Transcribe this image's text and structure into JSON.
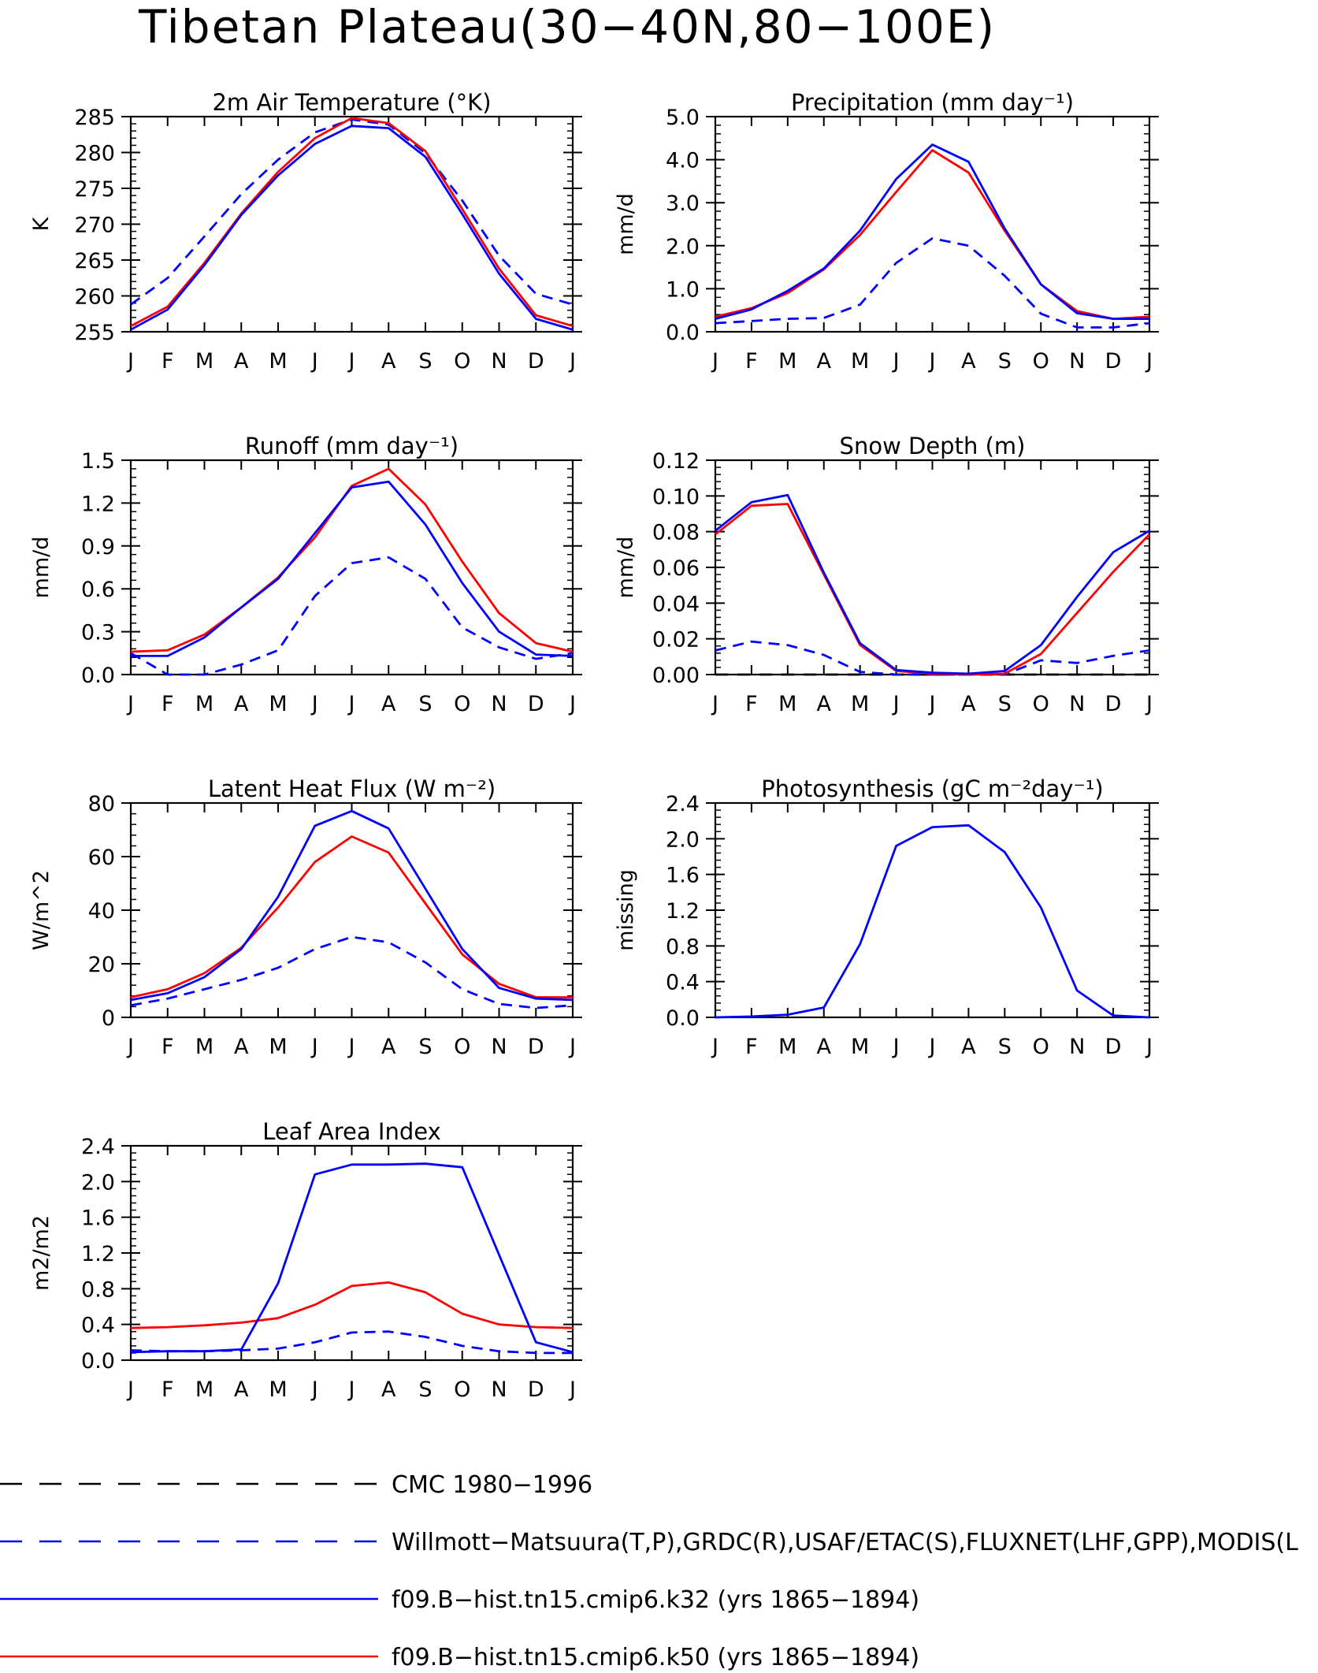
{
  "title": "Tibetan Plateau(30−40N,80−100E)",
  "colors": {
    "obs": "#0000ff",
    "k32": "#0000ff",
    "k50": "#ff0000",
    "cmc": "#000000"
  },
  "months": [
    "J",
    "F",
    "M",
    "A",
    "M",
    "J",
    "J",
    "A",
    "S",
    "O",
    "N",
    "D",
    "J"
  ],
  "legend": [
    {
      "label": "CMC 1980−1996",
      "color": "#000000",
      "style": "longdash"
    },
    {
      "label": "Willmott−Matsuura(T,P),GRDC(R),USAF/ETAC(S),FLUXNET(LHF,GPP),MODIS(L",
      "color": "#0000ff",
      "style": "longdash"
    },
    {
      "label": "f09.B−hist.tn15.cmip6.k32 (yrs 1865−1894)",
      "color": "#0000ff",
      "style": "solid"
    },
    {
      "label": "f09.B−hist.tn15.cmip6.k50 (yrs 1865−1894)",
      "color": "#ff0000",
      "style": "solid"
    }
  ],
  "chart_data": [
    {
      "id": "temp",
      "type": "line",
      "title": "2m Air Temperature (°K)",
      "ylabel": "K",
      "ylim": [
        255,
        285
      ],
      "yticks": [
        255,
        260,
        265,
        270,
        275,
        280,
        285
      ],
      "ydec": 0,
      "series": [
        {
          "role": "obs",
          "color": "#0000ff",
          "dash": true,
          "values": [
            258.8,
            262.5,
            268.3,
            274.2,
            279.0,
            282.8,
            284.6,
            283.9,
            279.9,
            273.3,
            265.6,
            260.3,
            258.8
          ]
        },
        {
          "role": "k50",
          "color": "#ff0000",
          "dash": false,
          "values": [
            255.8,
            258.5,
            264.6,
            271.5,
            277.3,
            282.0,
            284.8,
            284.1,
            280.2,
            272.1,
            263.8,
            257.3,
            255.8
          ]
        },
        {
          "role": "k32",
          "color": "#0000ff",
          "dash": false,
          "values": [
            255.3,
            258.1,
            264.3,
            271.3,
            276.8,
            281.2,
            283.7,
            283.4,
            279.4,
            271.4,
            263.1,
            256.8,
            255.3
          ]
        }
      ]
    },
    {
      "id": "precip",
      "type": "line",
      "title": "Precipitation (mm day⁻¹)",
      "ylabel": "mm/d",
      "ylim": [
        0,
        5
      ],
      "yticks": [
        0,
        1,
        2,
        3,
        4,
        5
      ],
      "ydec": 1,
      "series": [
        {
          "role": "obs",
          "color": "#0000ff",
          "dash": true,
          "values": [
            0.2,
            0.25,
            0.3,
            0.32,
            0.63,
            1.6,
            2.17,
            2.0,
            1.3,
            0.42,
            0.1,
            0.1,
            0.2
          ]
        },
        {
          "role": "k50",
          "color": "#ff0000",
          "dash": false,
          "values": [
            0.35,
            0.55,
            0.9,
            1.45,
            2.25,
            3.25,
            4.22,
            3.7,
            2.35,
            1.1,
            0.48,
            0.3,
            0.35
          ]
        },
        {
          "role": "k32",
          "color": "#0000ff",
          "dash": false,
          "values": [
            0.3,
            0.52,
            0.95,
            1.47,
            2.35,
            3.55,
            4.35,
            3.95,
            2.4,
            1.1,
            0.43,
            0.3,
            0.3
          ]
        }
      ]
    },
    {
      "id": "runoff",
      "type": "line",
      "title": "Runoff (mm day⁻¹)",
      "ylabel": "mm/d",
      "ylim": [
        0,
        1.5
      ],
      "yticks": [
        0,
        0.3,
        0.6,
        0.9,
        1.2,
        1.5
      ],
      "ydec": 1,
      "series": [
        {
          "role": "obs",
          "color": "#0000ff",
          "dash": true,
          "values": [
            0.15,
            0.0,
            0.0,
            0.07,
            0.17,
            0.55,
            0.78,
            0.82,
            0.67,
            0.33,
            0.19,
            0.11,
            0.15
          ]
        },
        {
          "role": "k50",
          "color": "#ff0000",
          "dash": false,
          "values": [
            0.16,
            0.17,
            0.28,
            0.47,
            0.68,
            0.96,
            1.32,
            1.44,
            1.19,
            0.79,
            0.43,
            0.22,
            0.16
          ]
        },
        {
          "role": "k32",
          "color": "#0000ff",
          "dash": false,
          "values": [
            0.13,
            0.13,
            0.26,
            0.47,
            0.67,
            0.99,
            1.31,
            1.35,
            1.05,
            0.64,
            0.3,
            0.14,
            0.13
          ]
        }
      ]
    },
    {
      "id": "snow",
      "type": "line",
      "title": "Snow Depth (m)",
      "ylabel": "mm/d",
      "ylim": [
        0,
        0.12
      ],
      "yticks": [
        0,
        0.02,
        0.04,
        0.06,
        0.08,
        0.1,
        0.12
      ],
      "ydec": 2,
      "series": [
        {
          "role": "cmc",
          "color": "#000000",
          "dash": true,
          "values": [
            0,
            0,
            0,
            0,
            0,
            0,
            0,
            0,
            0,
            0,
            0,
            0,
            0
          ]
        },
        {
          "role": "obs",
          "color": "#0000ff",
          "dash": true,
          "values": [
            0.0135,
            0.0185,
            0.0165,
            0.011,
            0.0015,
            0,
            0,
            0,
            0,
            0.008,
            0.0065,
            0.0105,
            0.0135
          ]
        },
        {
          "role": "k50",
          "color": "#ff0000",
          "dash": false,
          "values": [
            0.0785,
            0.0945,
            0.0955,
            0.056,
            0.0165,
            0.002,
            0.0005,
            0,
            0.0005,
            0.0115,
            0.0345,
            0.0575,
            0.0785
          ]
        },
        {
          "role": "k32",
          "color": "#0000ff",
          "dash": false,
          "values": [
            0.0805,
            0.0965,
            0.1005,
            0.057,
            0.0175,
            0.0025,
            0.001,
            0.0005,
            0.002,
            0.0165,
            0.0435,
            0.0685,
            0.0805
          ]
        }
      ]
    },
    {
      "id": "lhf",
      "type": "line",
      "title": "Latent Heat Flux (W m⁻²)",
      "ylabel": "W/m^2",
      "ylim": [
        0,
        80
      ],
      "yticks": [
        0,
        20,
        40,
        60,
        80
      ],
      "ydec": 0,
      "series": [
        {
          "role": "obs",
          "color": "#0000ff",
          "dash": true,
          "values": [
            4.5,
            7.0,
            10.5,
            14.0,
            18.5,
            25.5,
            30.0,
            28.0,
            20.5,
            10.5,
            5.0,
            3.5,
            4.5
          ]
        },
        {
          "role": "k50",
          "color": "#ff0000",
          "dash": false,
          "values": [
            7.5,
            10.5,
            16.5,
            26.0,
            41.0,
            58.0,
            67.5,
            61.5,
            42.5,
            23.5,
            12.5,
            7.5,
            7.5
          ]
        },
        {
          "role": "k32",
          "color": "#0000ff",
          "dash": false,
          "values": [
            6.5,
            9.0,
            15.0,
            25.5,
            45.0,
            71.5,
            77.0,
            70.5,
            48.0,
            25.5,
            11.0,
            7.0,
            6.5
          ]
        }
      ]
    },
    {
      "id": "gpp",
      "type": "line",
      "title": "Photosynthesis (gC m⁻²day⁻¹)",
      "ylabel": "missing",
      "ylim": [
        0,
        2.4
      ],
      "yticks": [
        0,
        0.4,
        0.8,
        1.2,
        1.6,
        2.0,
        2.4
      ],
      "ydec": 1,
      "series": [
        {
          "role": "k32",
          "color": "#0000ff",
          "dash": false,
          "values": [
            0.0,
            0.01,
            0.03,
            0.11,
            0.82,
            1.92,
            2.13,
            2.15,
            1.85,
            1.23,
            0.3,
            0.02,
            0.0
          ]
        }
      ]
    },
    {
      "id": "lai",
      "type": "line",
      "title": "Leaf Area Index",
      "ylabel": "m2/m2",
      "ylim": [
        0,
        2.4
      ],
      "yticks": [
        0,
        0.4,
        0.8,
        1.2,
        1.6,
        2.0,
        2.4
      ],
      "ydec": 1,
      "series": [
        {
          "role": "obs",
          "color": "#0000ff",
          "dash": true,
          "values": [
            0.11,
            0.1,
            0.1,
            0.11,
            0.13,
            0.2,
            0.31,
            0.32,
            0.26,
            0.16,
            0.1,
            0.08,
            0.08
          ]
        },
        {
          "role": "k50",
          "color": "#ff0000",
          "dash": false,
          "values": [
            0.36,
            0.37,
            0.39,
            0.42,
            0.47,
            0.62,
            0.83,
            0.87,
            0.76,
            0.52,
            0.4,
            0.37,
            0.36
          ]
        },
        {
          "role": "k32",
          "color": "#0000ff",
          "dash": false,
          "values": [
            0.09,
            0.1,
            0.1,
            0.12,
            0.86,
            2.08,
            2.19,
            2.19,
            2.2,
            2.16,
            1.18,
            0.2,
            0.09
          ]
        }
      ]
    }
  ]
}
